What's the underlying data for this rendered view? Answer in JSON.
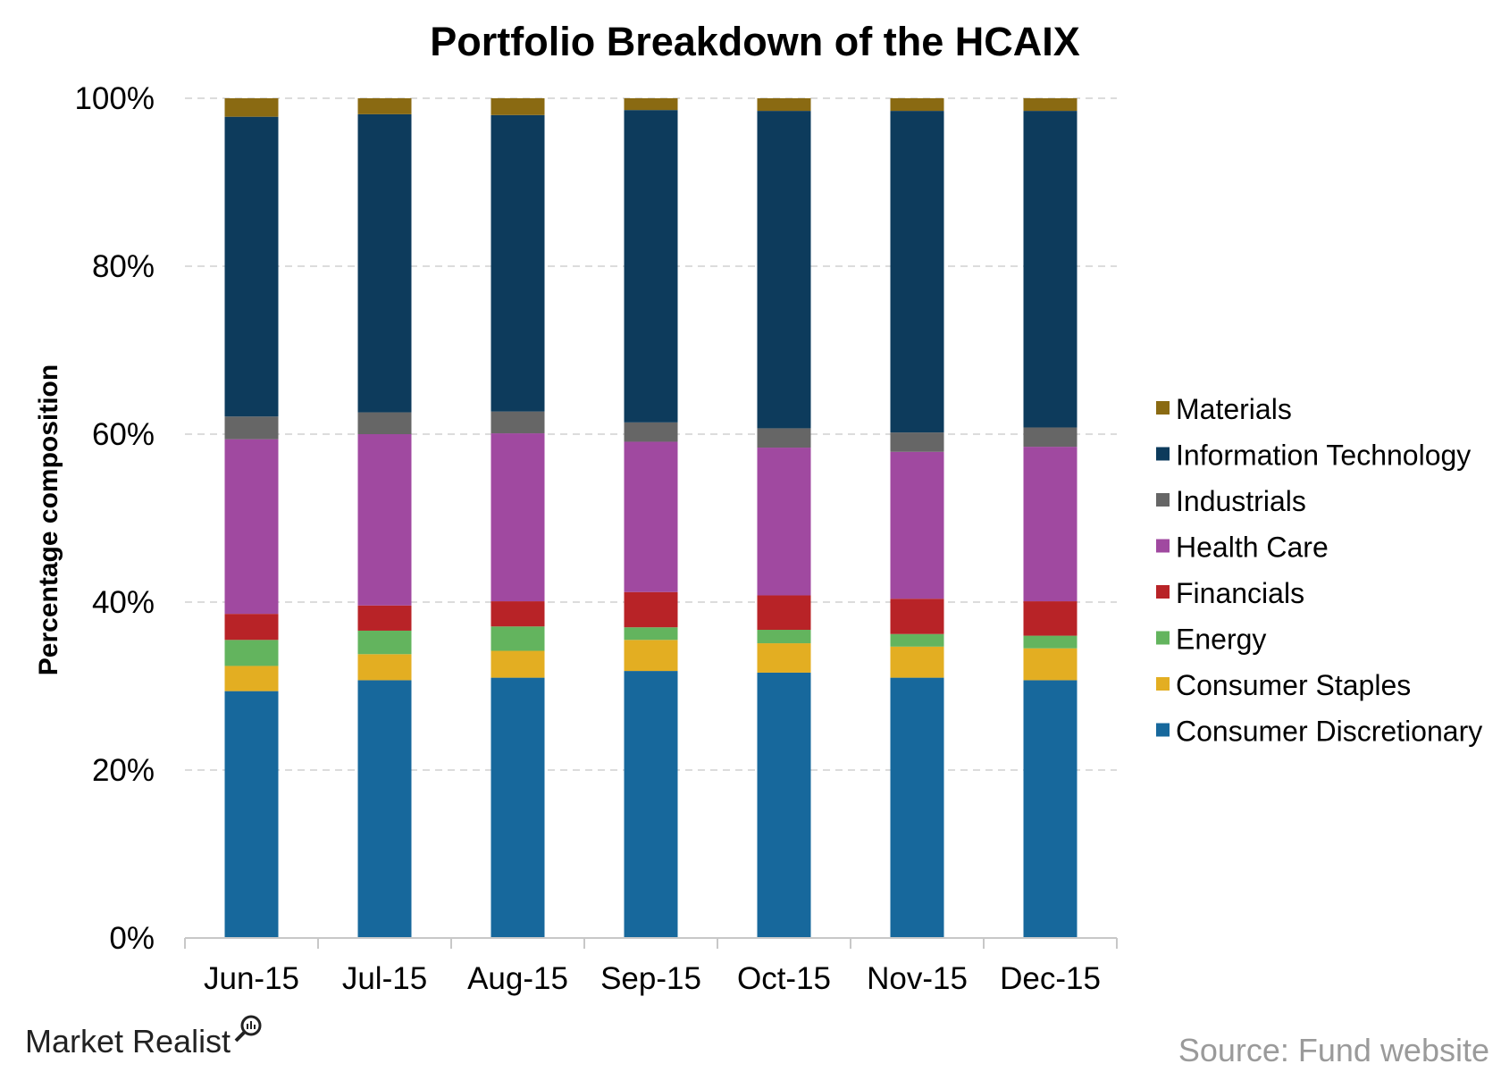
{
  "chart_data": {
    "type": "bar",
    "stacked": true,
    "title": "Portfolio Breakdown of the HCAIX",
    "xlabel": "",
    "ylabel": "Percentage composition",
    "ylim": [
      0,
      100
    ],
    "yticks": [
      "0%",
      "20%",
      "40%",
      "60%",
      "80%",
      "100%"
    ],
    "grid": true,
    "legend_position": "right",
    "categories": [
      "Jun-15",
      "Jul-15",
      "Aug-15",
      "Sep-15",
      "Oct-15",
      "Nov-15",
      "Dec-15"
    ],
    "series": [
      {
        "name": "Consumer Discretionary",
        "color": "#17689c",
        "values": [
          29.4,
          30.7,
          31.0,
          31.8,
          31.6,
          31.0,
          30.7
        ]
      },
      {
        "name": "Consumer Staples",
        "color": "#e3ae22",
        "values": [
          3.0,
          3.1,
          3.2,
          3.7,
          3.5,
          3.7,
          3.8
        ]
      },
      {
        "name": "Energy",
        "color": "#63b45e",
        "values": [
          3.1,
          2.8,
          2.9,
          1.5,
          1.6,
          1.5,
          1.5
        ]
      },
      {
        "name": "Financials",
        "color": "#b82327",
        "values": [
          3.1,
          3.0,
          3.0,
          4.2,
          4.1,
          4.2,
          4.1
        ]
      },
      {
        "name": "Health Care",
        "color": "#a049a0",
        "values": [
          20.8,
          20.4,
          20.0,
          17.9,
          17.6,
          17.5,
          18.4
        ]
      },
      {
        "name": "Industrials",
        "color": "#666666",
        "values": [
          2.7,
          2.6,
          2.6,
          2.3,
          2.3,
          2.3,
          2.3
        ]
      },
      {
        "name": "Information Technology",
        "color": "#0d3b5c",
        "values": [
          35.7,
          35.5,
          35.3,
          37.2,
          37.8,
          38.3,
          37.7
        ]
      },
      {
        "name": "Materials",
        "color": "#8a6a12",
        "values": [
          2.2,
          1.9,
          2.0,
          1.4,
          1.5,
          1.5,
          1.5
        ]
      }
    ]
  },
  "footer": {
    "brand": "Market Realist",
    "source": "Source: Fund website"
  }
}
